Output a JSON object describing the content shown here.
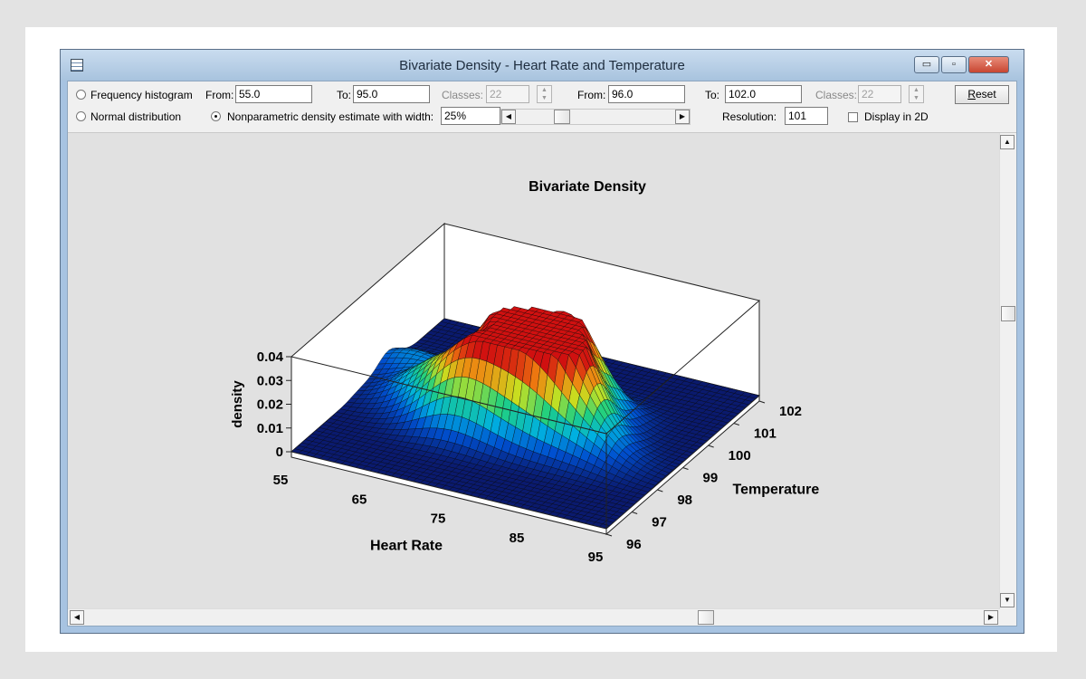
{
  "window": {
    "title": "Bivariate Density - Heart Rate and Temperature",
    "buttons": {
      "minimize": "▭",
      "maximize": "▫",
      "close": "✕"
    }
  },
  "controls": {
    "frequency_histogram": "Frequency histogram",
    "normal_distribution": "Normal distribution",
    "nonparametric": "Nonparametric density estimate with width:",
    "selected_option": "nonparametric",
    "x_from_label": "From:",
    "x_from_value": "55.0",
    "x_to_label": "To:",
    "x_to_value": "95.0",
    "x_classes_label": "Classes:",
    "x_classes_value": "22",
    "y_from_label": "From:",
    "y_from_value": "96.0",
    "y_to_label": "To:",
    "y_to_value": "102.0",
    "y_classes_label": "Classes:",
    "y_classes_value": "22",
    "reset_label": "Reset",
    "width_value": "25%",
    "resolution_label": "Resolution:",
    "resolution_value": "101",
    "display_2d_label": "Display in 2D",
    "display_2d_checked": false
  },
  "chart_data": {
    "type": "surface",
    "title": "Bivariate Density",
    "xlabel": "Heart Rate",
    "ylabel": "Temperature",
    "zlabel": "density",
    "x_ticks": [
      "55",
      "65",
      "75",
      "85",
      "95"
    ],
    "y_ticks": [
      "96",
      "97",
      "98",
      "99",
      "100",
      "101",
      "102"
    ],
    "z_ticks": [
      "0",
      "0.01",
      "0.02",
      "0.03",
      "0.04"
    ],
    "xlim": [
      55,
      95
    ],
    "ylim": [
      96,
      102
    ],
    "zlim": [
      0,
      0.04
    ],
    "colormap": [
      "#0a1a6e",
      "#0050d0",
      "#00b0e0",
      "#20d080",
      "#c8e020",
      "#f08010",
      "#d01010"
    ],
    "peaks": [
      {
        "x": 70,
        "y": 98.2,
        "z": 0.028
      },
      {
        "x": 77,
        "y": 98.5,
        "z": 0.033
      },
      {
        "x": 72,
        "y": 99.4,
        "z": 0.037
      },
      {
        "x": 80,
        "y": 98.9,
        "z": 0.036
      },
      {
        "x": 78,
        "y": 99.8,
        "z": 0.034
      },
      {
        "x": 64,
        "y": 98.8,
        "z": 0.015
      },
      {
        "x": 58,
        "y": 99.8,
        "z": 0.009
      },
      {
        "x": 85,
        "y": 98.3,
        "z": 0.01
      }
    ]
  }
}
